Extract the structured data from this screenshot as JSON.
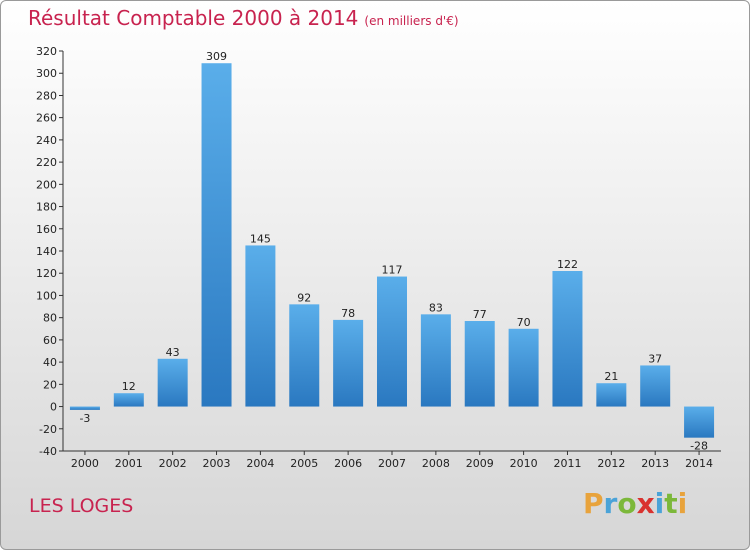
{
  "chart_data": {
    "type": "bar",
    "title": "Résultat Comptable 2000 à 2014",
    "subtitle": "(en milliers d'€)",
    "categories": [
      "2000",
      "2001",
      "2002",
      "2003",
      "2004",
      "2005",
      "2006",
      "2007",
      "2008",
      "2009",
      "2010",
      "2011",
      "2012",
      "2013",
      "2014"
    ],
    "values": [
      -3,
      12,
      43,
      309,
      145,
      92,
      78,
      117,
      83,
      77,
      70,
      122,
      21,
      37,
      -28
    ],
    "ylim": [
      -40,
      320
    ],
    "yticks": [
      -40,
      -20,
      0,
      20,
      40,
      60,
      80,
      100,
      120,
      140,
      160,
      180,
      200,
      220,
      240,
      260,
      280,
      300,
      320
    ],
    "xlabel": "",
    "ylabel": "",
    "grid": false,
    "bar_color": "#3a8fd6"
  },
  "place_name": "LES LOGES",
  "brand": {
    "letters": [
      "P",
      "r",
      "o",
      "x",
      "i",
      "t",
      "i"
    ],
    "colors": [
      "#e8a33c",
      "#4aa3d8",
      "#7cb83a",
      "#d9322f",
      "#4aa3d8",
      "#7cb83a",
      "#e8a33c"
    ]
  }
}
